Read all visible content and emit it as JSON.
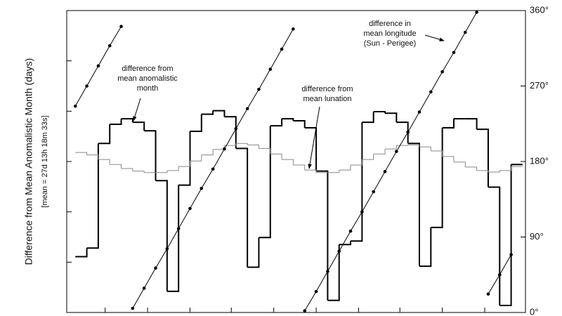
{
  "chart_data": {
    "type": "step",
    "y_label": "Difference from Mean Anomalistic Month (days)",
    "y_sublabel": "[mean = 27d 13h 18m 33s]",
    "x": [
      0,
      1,
      2,
      3,
      4,
      5,
      6,
      7,
      8,
      9,
      10,
      11,
      12,
      13,
      14,
      15,
      16,
      17,
      18,
      19,
      20,
      21,
      22,
      23,
      24,
      25,
      26,
      27,
      28,
      29,
      30,
      31,
      32,
      33,
      34,
      35,
      36,
      37,
      38
    ],
    "xlim": [
      -0.75,
      39.25
    ],
    "xticks": [
      2.6,
      6.3,
      10,
      13.6,
      17.3,
      21,
      24.7,
      28.3,
      32,
      35.7
    ],
    "ylim": [
      0,
      6
    ],
    "yticks": [
      0,
      1,
      2,
      3,
      4,
      5,
      6
    ],
    "y2lim": [
      0,
      360
    ],
    "y2ticks": [
      {
        "value": 0,
        "label": "0°"
      },
      {
        "value": 90,
        "label": "90°"
      },
      {
        "value": 180,
        "label": "180°"
      },
      {
        "value": 270,
        "label": "270°"
      },
      {
        "value": 360,
        "label": "360°"
      }
    ],
    "series": [
      {
        "color": "#000000",
        "values": [
          1.11,
          1.28,
          3.36,
          3.74,
          3.85,
          3.78,
          3.61,
          2.62,
          0.42,
          2.53,
          3.6,
          3.94,
          4.01,
          3.89,
          3.26,
          0.9,
          1.49,
          3.71,
          3.85,
          3.81,
          3.67,
          2.81,
          0.24,
          1.35,
          1.42,
          3.78,
          3.99,
          3.96,
          3.78,
          3.36,
          0.92,
          1.69,
          3.67,
          3.85,
          3.85,
          3.64,
          2.49,
          0.14,
          2.94
        ]
      },
      {
        "color": "#888888",
        "values": [
          3.18,
          3.13,
          3.04,
          2.94,
          2.86,
          2.81,
          2.78,
          2.78,
          2.82,
          2.9,
          3.01,
          3.13,
          3.24,
          3.32,
          3.36,
          3.33,
          3.26,
          3.15,
          3.04,
          2.93,
          2.83,
          2.78,
          2.78,
          2.83,
          2.93,
          3.04,
          3.15,
          3.25,
          3.32,
          3.33,
          3.29,
          3.21,
          3.1,
          2.99,
          2.89,
          2.82,
          2.79,
          2.82,
          2.9
        ]
      },
      {
        "color": "#000000",
        "axis": "y2",
        "values": [
          246,
          270,
          294,
          318,
          341,
          5,
          29,
          53,
          76,
          100,
          124,
          148,
          171,
          195,
          219,
          243,
          266,
          290,
          314,
          338,
          2,
          25,
          49,
          73,
          97,
          120,
          144,
          168,
          192,
          215,
          239,
          263,
          287,
          310,
          334,
          358,
          22,
          45,
          69
        ]
      }
    ],
    "annotations": [
      {
        "text": [
          "difference from",
          "mean anomalistic",
          "month"
        ]
      },
      {
        "text": [
          "difference from",
          "mean lunation"
        ]
      },
      {
        "text": [
          "difference in",
          "mean longitude",
          "(Sun - Perigee)"
        ]
      }
    ]
  }
}
